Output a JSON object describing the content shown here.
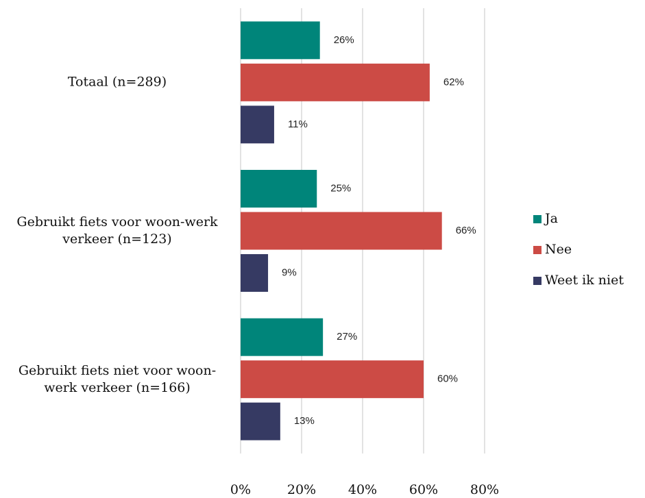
{
  "chart_data": {
    "type": "bar",
    "orientation": "horizontal",
    "categories": [
      "Totaal (n=289)",
      "Gebruikt fiets voor woon-werk verkeer (n=123)",
      "Gebruikt fiets niet voor woon-werk verkeer (n=166)"
    ],
    "series": [
      {
        "name": "Ja",
        "color": "#00857a",
        "values": [
          26,
          25,
          27
        ],
        "value_labels": [
          "26%",
          "25%",
          "27%"
        ]
      },
      {
        "name": "Nee",
        "color": "#cc4b45",
        "values": [
          62,
          66,
          60
        ],
        "value_labels": [
          "62%",
          "66%",
          "60%"
        ]
      },
      {
        "name": "Weet ik niet",
        "color": "#363a63",
        "values": [
          11,
          9,
          13
        ],
        "value_labels": [
          "11%",
          "9%",
          "13%"
        ]
      }
    ],
    "xlim": [
      0,
      80
    ],
    "xticks": [
      {
        "value": 0,
        "label": "0%"
      },
      {
        "value": 20,
        "label": "20%"
      },
      {
        "value": 40,
        "label": "40%"
      },
      {
        "value": 60,
        "label": "60%"
      },
      {
        "value": 80,
        "label": "80%"
      }
    ],
    "grid": true,
    "legend": "right"
  }
}
